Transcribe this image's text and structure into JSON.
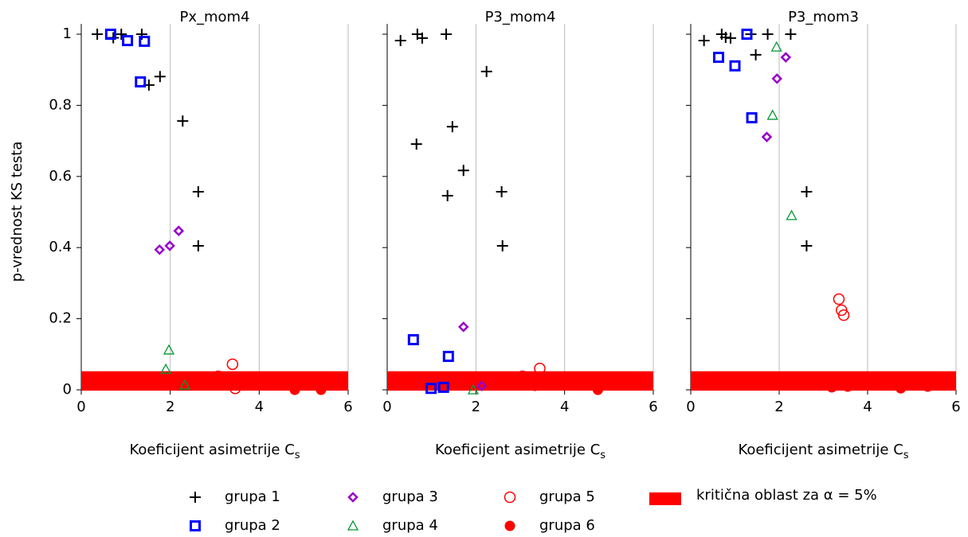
{
  "chart_data": {
    "type": "scatter",
    "ylabel": "p-vrednost KS testa",
    "xlabel": "Koeficijent asimetrije C",
    "xlabel_sub": "s",
    "xlim": [
      0,
      6
    ],
    "xticks": [
      0,
      2,
      4,
      6
    ],
    "ylim": [
      0,
      1
    ],
    "yticks": [
      0,
      0.2,
      0.4,
      0.6,
      0.8,
      1
    ],
    "grid": "x",
    "series": [
      {
        "name": "grupa 1",
        "color": "#000000",
        "marker": "plus"
      },
      {
        "name": "grupa 2",
        "color": "#0000ff",
        "marker": "square"
      },
      {
        "name": "grupa 3",
        "color": "#9900cc",
        "marker": "diamond"
      },
      {
        "name": "grupa 4",
        "color": "#009933",
        "marker": "triangle"
      },
      {
        "name": "grupa 5",
        "color": "#ff0000",
        "marker": "circle"
      },
      {
        "name": "grupa 6",
        "color": "#ff0000",
        "marker": "dot"
      }
    ],
    "critical_region": {
      "name": "kritična oblast za α = 5%",
      "color": "#ff0000",
      "range": [
        0,
        0.05
      ]
    },
    "panels": [
      {
        "title": "Px_mom4",
        "series": [
          {
            "x": [
              0.36,
              0.72,
              0.9,
              1.36,
              1.52,
              1.77,
              2.28,
              2.63,
              2.63
            ],
            "values": [
              1.0,
              0.99,
              1.0,
              1.0,
              0.857,
              0.881,
              0.756,
              0.557,
              0.405
            ]
          },
          {
            "x": [
              0.66,
              1.04,
              1.42,
              1.33
            ],
            "values": [
              1.0,
              0.982,
              0.98,
              0.866
            ]
          },
          {
            "x": [
              1.76,
              1.99,
              2.19
            ],
            "values": [
              0.394,
              0.405,
              0.447
            ]
          },
          {
            "x": [
              1.97,
              1.9,
              2.33
            ],
            "values": [
              0.112,
              0.058,
              0.013
            ]
          },
          {
            "x": [
              3.4,
              3.08,
              3.46
            ],
            "values": [
              0.072,
              0.038,
              0.004
            ]
          },
          {
            "x": [
              3.08,
              3.48,
              4.8,
              5.39
            ],
            "values": [
              0.038,
              0.034,
              0.0,
              0.0
            ]
          }
        ]
      },
      {
        "title": "P3_mom4",
        "series": [
          {
            "x": [
              0.3,
              0.68,
              0.79,
              1.33,
              2.24,
              1.47,
              0.66,
              1.72,
              1.36,
              2.58,
              2.6
            ],
            "values": [
              0.982,
              1.0,
              0.989,
              1.0,
              0.895,
              0.74,
              0.691,
              0.617,
              0.546,
              0.557,
              0.405
            ]
          },
          {
            "x": [
              0.59,
              1.38,
              0.99,
              1.27
            ],
            "values": [
              0.141,
              0.094,
              0.004,
              0.007
            ]
          },
          {
            "x": [
              1.72,
              2.13
            ],
            "values": [
              0.177,
              0.011
            ]
          },
          {
            "x": [
              1.94
            ],
            "values": [
              0.0
            ]
          },
          {
            "x": [
              3.44,
              3.05
            ],
            "values": [
              0.06,
              0.038
            ]
          },
          {
            "x": [
              3.05,
              3.33,
              4.75
            ],
            "values": [
              0.038,
              0.011,
              0.0
            ]
          }
        ]
      },
      {
        "title": "P3_mom3",
        "series": [
          {
            "x": [
              0.3,
              0.7,
              0.79,
              0.9,
              1.47,
              1.36,
              1.74,
              2.26,
              2.62,
              2.62
            ],
            "values": [
              0.982,
              1.0,
              0.991,
              0.989,
              0.942,
              1.0,
              1.0,
              1.0,
              0.557,
              0.405
            ]
          },
          {
            "x": [
              0.63,
              1.0,
              1.27,
              1.38
            ],
            "values": [
              0.935,
              0.911,
              1.0,
              0.765
            ]
          },
          {
            "x": [
              2.15,
              1.95,
              1.72
            ],
            "values": [
              0.935,
              0.875,
              0.711
            ]
          },
          {
            "x": [
              1.94,
              1.85,
              2.28
            ],
            "values": [
              0.964,
              0.772,
              0.49
            ]
          },
          {
            "x": [
              3.35,
              3.41,
              3.46
            ],
            "values": [
              0.255,
              0.224,
              0.21
            ]
          },
          {
            "x": [
              3.19,
              3.55,
              4.75,
              5.36
            ],
            "values": [
              0.007,
              0.009,
              0.004,
              0.009
            ]
          }
        ]
      }
    ]
  }
}
